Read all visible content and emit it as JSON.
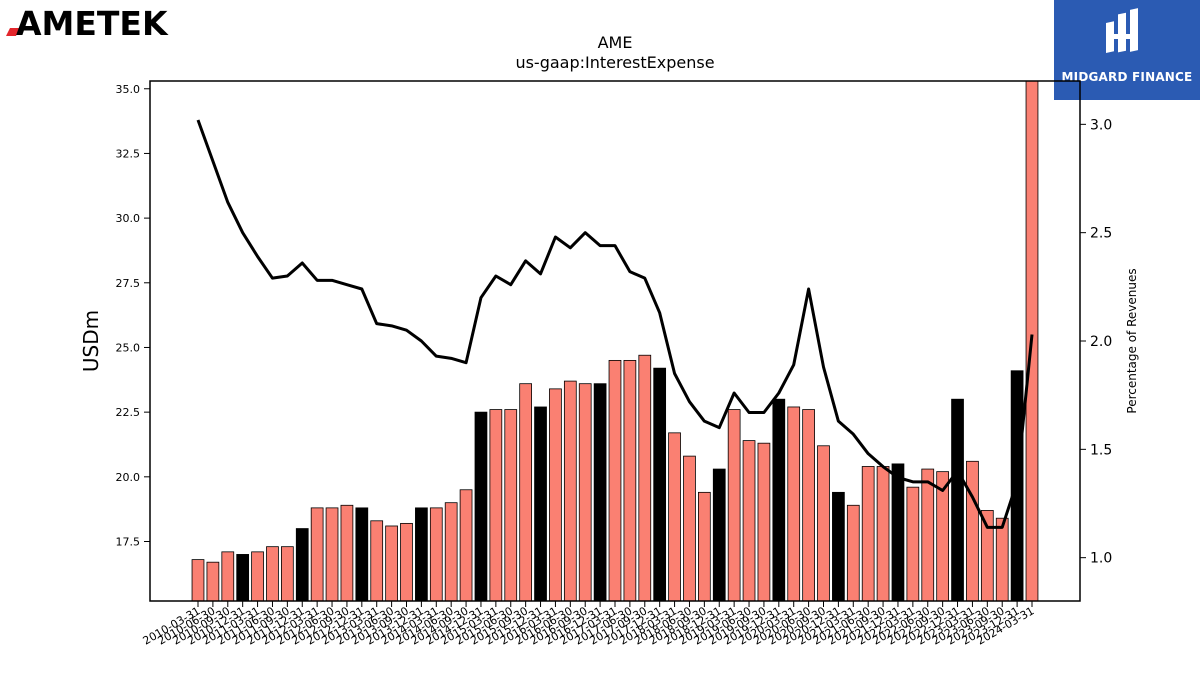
{
  "brands": {
    "left_logo": "AMETEK",
    "right_logo": "MIDGARD FINANCE"
  },
  "colors": {
    "bar_normal": "#fa8072",
    "bar_q4": "#000000",
    "line": "#000000",
    "brand_blue": "#2b5bb3",
    "ametek_red": "#e3262c"
  },
  "chart_data": {
    "type": "bar",
    "title": "AME",
    "subtitle": "us-gaap:InterestExpense",
    "ylabel": "USDm",
    "y2label": "Percentage of Revenues",
    "ylim": [
      15.2,
      35.3
    ],
    "y2lim": [
      0.8,
      3.2
    ],
    "yticks": [
      "17.5",
      "20.0",
      "22.5",
      "25.0",
      "27.5",
      "30.0",
      "32.5",
      "35.0"
    ],
    "y2ticks": [
      "1.0",
      "1.5",
      "2.0",
      "2.5",
      "3.0"
    ],
    "categories": [
      "2010-03-31",
      "2010-06-30",
      "2010-09-30",
      "2010-12-31",
      "2011-03-31",
      "2011-06-30",
      "2011-09-30",
      "2011-12-31",
      "2012-03-31",
      "2012-06-30",
      "2012-09-30",
      "2012-12-31",
      "2013-03-31",
      "2013-06-30",
      "2013-09-30",
      "2013-12-31",
      "2014-03-31",
      "2014-06-30",
      "2014-09-30",
      "2014-12-31",
      "2015-03-31",
      "2015-06-30",
      "2015-09-30",
      "2015-12-31",
      "2016-03-31",
      "2016-06-30",
      "2016-09-30",
      "2016-12-31",
      "2017-03-31",
      "2017-06-30",
      "2017-09-30",
      "2017-12-31",
      "2018-03-31",
      "2018-06-30",
      "2018-09-30",
      "2018-12-31",
      "2019-03-31",
      "2019-06-30",
      "2019-09-30",
      "2019-12-31",
      "2020-03-31",
      "2020-06-30",
      "2020-09-30",
      "2020-12-31",
      "2021-03-31",
      "2021-06-30",
      "2021-09-30",
      "2021-12-31",
      "2022-03-31",
      "2022-06-30",
      "2022-09-30",
      "2022-12-31",
      "2023-03-31",
      "2023-06-30",
      "2023-09-30",
      "2023-12-31",
      "2024-03-31"
    ],
    "series": [
      {
        "type": "bar",
        "values": [
          16.8,
          16.7,
          17.1,
          17.0,
          17.1,
          17.3,
          17.3,
          18.0,
          18.8,
          18.8,
          18.9,
          18.8,
          18.3,
          18.1,
          18.2,
          18.8,
          18.8,
          19.0,
          19.5,
          22.5,
          22.6,
          22.6,
          23.6,
          22.7,
          23.4,
          23.7,
          23.6,
          23.6,
          24.5,
          24.5,
          24.7,
          24.2,
          21.7,
          20.8,
          19.4,
          20.3,
          22.6,
          21.4,
          21.3,
          23.0,
          22.7,
          22.6,
          21.2,
          19.4,
          18.9,
          20.4,
          20.4,
          20.5,
          19.6,
          20.3,
          20.2,
          23.0,
          20.6,
          18.7,
          18.4,
          24.1,
          35.3
        ]
      },
      {
        "type": "line",
        "axis": "secondary",
        "values": [
          3.02,
          2.83,
          2.64,
          2.5,
          2.39,
          2.29,
          2.3,
          2.36,
          2.28,
          2.28,
          2.26,
          2.24,
          2.08,
          2.07,
          2.05,
          2.0,
          1.93,
          1.92,
          1.9,
          2.2,
          2.3,
          2.26,
          2.37,
          2.31,
          2.48,
          2.43,
          2.5,
          2.44,
          2.44,
          2.32,
          2.29,
          2.13,
          1.85,
          1.72,
          1.63,
          1.6,
          1.76,
          1.67,
          1.67,
          1.76,
          1.89,
          2.24,
          1.88,
          1.63,
          1.57,
          1.48,
          1.42,
          1.37,
          1.35,
          1.35,
          1.31,
          1.4,
          1.28,
          1.14,
          1.14,
          1.35,
          2.03
        ]
      }
    ]
  }
}
